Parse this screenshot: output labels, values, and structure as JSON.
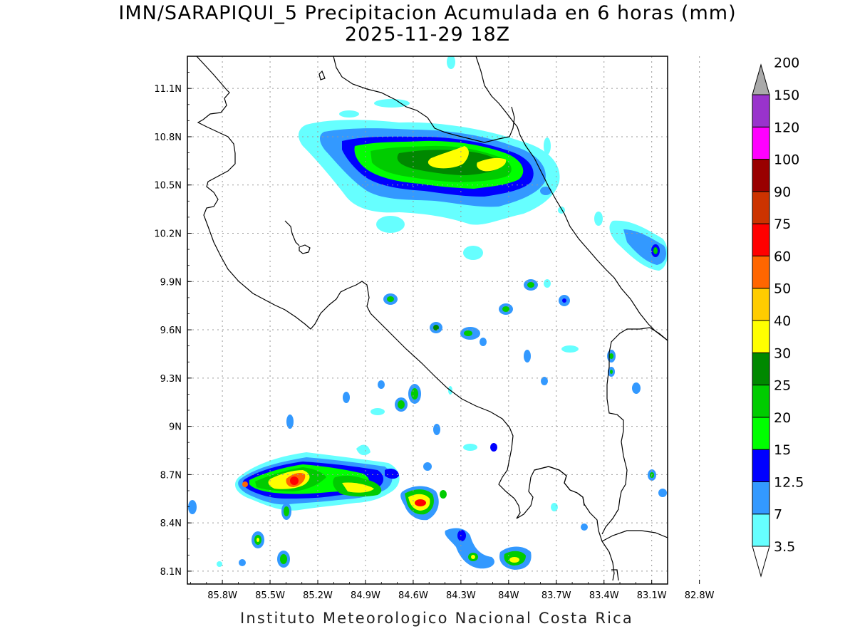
{
  "title": "IMN/SARAPIQUI_5 Precipitacion Acumulada en 6 horas (mm)",
  "subtitle": "2025-11-29 18Z",
  "footer": "Instituto Meteorologico Nacional Costa Rica",
  "map": {
    "lon_range": [
      -86.02,
      -83.0
    ],
    "lat_range": [
      8.02,
      11.3
    ],
    "lon_ticks": [
      "85.8W",
      "85.5W",
      "85.2W",
      "84.9W",
      "84.6W",
      "84.3W",
      "84W",
      "83.7W",
      "83.4W",
      "83.1W",
      "82.8W"
    ],
    "lat_ticks": [
      "8.1N",
      "8.4N",
      "8.7N",
      "9N",
      "9.3N",
      "9.6N",
      "9.9N",
      "10.2N",
      "10.5N",
      "10.8N",
      "11.1N"
    ],
    "grid": true
  },
  "colorbar": {
    "levels": [
      "3.5",
      "7",
      "12.5",
      "15",
      "20",
      "25",
      "30",
      "40",
      "50",
      "60",
      "75",
      "90",
      "100",
      "120",
      "150",
      "200"
    ],
    "colors": [
      "#66ffff",
      "#3399ff",
      "#0000ff",
      "#00ff00",
      "#00cc00",
      "#008800",
      "#ffff00",
      "#ffcc00",
      "#ff6600",
      "#ff0000",
      "#cc3300",
      "#990000",
      "#ff00ff",
      "#9933cc",
      "#f5f5f5",
      "#aaaaaa"
    ]
  }
}
